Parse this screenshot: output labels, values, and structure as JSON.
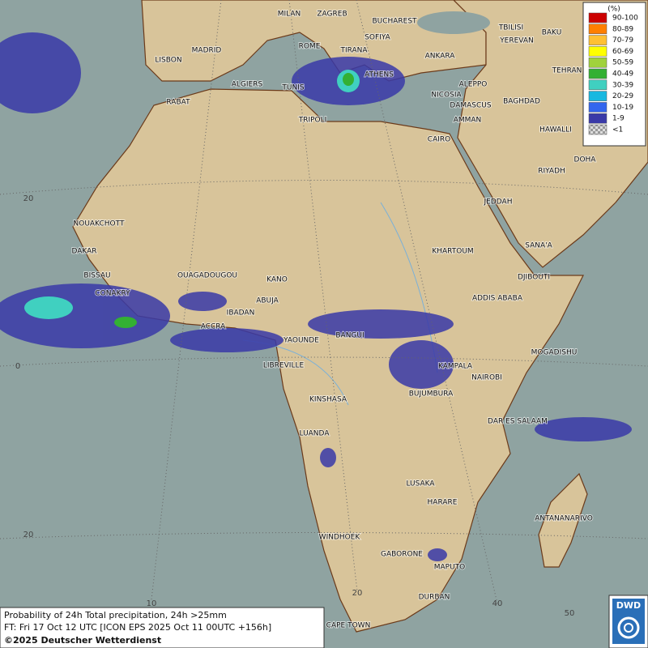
{
  "map": {
    "cities": [
      "MILAN",
      "ZAGREB",
      "BUCHAREST",
      "TBILISI",
      "BAKU",
      "ROME",
      "SOFIYA",
      "TIRANA",
      "YEREVAN",
      "MADRID",
      "LISBON",
      "ANKARA",
      "ATHENS",
      "TEHRAN",
      "ALGIERS",
      "TUNIS",
      "ALEPPO",
      "RABAT",
      "NICOSIA",
      "BAGHDAD",
      "DAMASCUS",
      "TRIPOLI",
      "AMMAN",
      "HAWALLI",
      "CAIRO",
      "DOHA",
      "RIYADH",
      "JEDDAH",
      "NOUAKCHOTT",
      "SANA'A",
      "KHARTOUM",
      "DAKAR",
      "BISSAU",
      "OUAGADOUGOU",
      "DJIBOUTI",
      "KANO",
      "CONAKRY",
      "ABUJA",
      "ADDIS ABABA",
      "IBADAN",
      "ACCRA",
      "BANGUI",
      "YAOUNDE",
      "MOGADISHU",
      "LIBREVILLE",
      "KAMPALA",
      "NAIROBI",
      "BUJUMBURA",
      "KINSHASA",
      "DAR ES SALAAM",
      "LUANDA",
      "LUSAKA",
      "HARARE",
      "ANTANANARIVO",
      "WINDHOEK",
      "GABORONE",
      "MAPUTO",
      "DURBAN",
      "CAPE TOWN"
    ],
    "grid_labels": [
      "20",
      "0",
      "20",
      "10",
      "20",
      "40",
      "50"
    ]
  },
  "legend": {
    "unit": "(%)",
    "entries": [
      {
        "label": "90-100",
        "color": "#cc0000"
      },
      {
        "label": "80-89",
        "color": "#ff7f00"
      },
      {
        "label": "70-79",
        "color": "#ffc033"
      },
      {
        "label": "60-69",
        "color": "#ffff00"
      },
      {
        "label": "50-59",
        "color": "#a0d23c"
      },
      {
        "label": "40-49",
        "color": "#33b033"
      },
      {
        "label": "30-39",
        "color": "#40d0c0"
      },
      {
        "label": "20-29",
        "color": "#18b8e0"
      },
      {
        "label": "10-19",
        "color": "#3366ee"
      },
      {
        "label": "1-9",
        "color": "#3a3aa8"
      },
      {
        "label": "<1",
        "color": "checker"
      }
    ]
  },
  "caption": {
    "line1": "Probability of 24h Total precipitation, 24h >25mm",
    "line2": "FT: Fri 17 Oct 12 UTC [ICON EPS 2025 Oct 11 00UTC +156h]",
    "line3": "©2025 Deutscher Wetterdienst"
  },
  "logo": "DWD"
}
